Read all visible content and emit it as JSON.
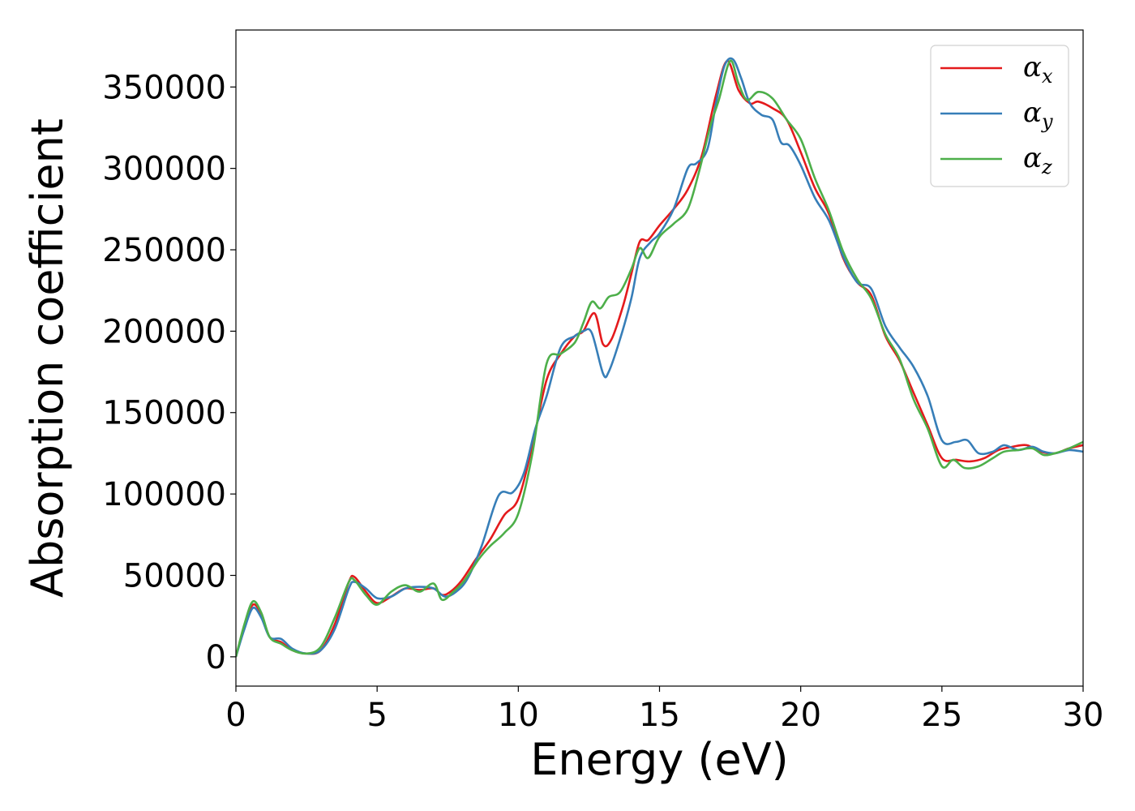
{
  "chart_data": {
    "type": "line",
    "xlabel": "Energy (eV)",
    "ylabel": "Absorption coefficient",
    "xlim": [
      0,
      30
    ],
    "ylim": [
      -18000,
      385000
    ],
    "xticks": [
      0,
      5,
      10,
      15,
      20,
      25,
      30
    ],
    "yticks": [
      0,
      50000,
      100000,
      150000,
      200000,
      250000,
      300000,
      350000
    ],
    "grid": false,
    "legend_position": "top-right",
    "series": [
      {
        "name": "α_x",
        "symbol": "α",
        "subscript": "x",
        "color": "#e41a1c",
        "points": [
          [
            0,
            0
          ],
          [
            0.3,
            19000
          ],
          [
            0.6,
            32000
          ],
          [
            0.9,
            26000
          ],
          [
            1.2,
            12000
          ],
          [
            1.6,
            9000
          ],
          [
            2,
            4000
          ],
          [
            2.5,
            2000
          ],
          [
            3,
            4000
          ],
          [
            3.5,
            20000
          ],
          [
            4,
            46000
          ],
          [
            4.2,
            49000
          ],
          [
            4.6,
            40000
          ],
          [
            5,
            33000
          ],
          [
            5.5,
            37000
          ],
          [
            6,
            42000
          ],
          [
            6.5,
            41000
          ],
          [
            7,
            42000
          ],
          [
            7.3,
            38000
          ],
          [
            7.6,
            40000
          ],
          [
            8,
            47000
          ],
          [
            8.5,
            60000
          ],
          [
            9,
            72000
          ],
          [
            9.5,
            87000
          ],
          [
            10,
            97000
          ],
          [
            10.5,
            130000
          ],
          [
            11,
            170000
          ],
          [
            11.5,
            186000
          ],
          [
            12,
            197000
          ],
          [
            12.3,
            200000
          ],
          [
            12.7,
            211000
          ],
          [
            13,
            192000
          ],
          [
            13.3,
            195000
          ],
          [
            13.7,
            215000
          ],
          [
            14,
            235000
          ],
          [
            14.3,
            255000
          ],
          [
            14.6,
            256000
          ],
          [
            15,
            265000
          ],
          [
            15.5,
            275000
          ],
          [
            16,
            287000
          ],
          [
            16.5,
            308000
          ],
          [
            17,
            345000
          ],
          [
            17.4,
            366000
          ],
          [
            17.8,
            348000
          ],
          [
            18.2,
            340000
          ],
          [
            18.5,
            341000
          ],
          [
            19,
            337000
          ],
          [
            19.5,
            330000
          ],
          [
            20,
            310000
          ],
          [
            20.5,
            288000
          ],
          [
            21,
            272000
          ],
          [
            21.5,
            245000
          ],
          [
            22,
            230000
          ],
          [
            22.5,
            222000
          ],
          [
            23,
            197000
          ],
          [
            23.5,
            182000
          ],
          [
            24,
            162000
          ],
          [
            24.5,
            142000
          ],
          [
            25,
            122000
          ],
          [
            25.5,
            121000
          ],
          [
            26,
            120000
          ],
          [
            26.5,
            122000
          ],
          [
            27,
            127000
          ],
          [
            27.5,
            129000
          ],
          [
            28,
            130000
          ],
          [
            28.5,
            126000
          ],
          [
            29,
            125000
          ],
          [
            29.5,
            128000
          ],
          [
            30,
            130000
          ]
        ]
      },
      {
        "name": "α_y",
        "symbol": "α",
        "subscript": "y",
        "color": "#377eb8",
        "points": [
          [
            0,
            0
          ],
          [
            0.3,
            17000
          ],
          [
            0.6,
            30000
          ],
          [
            0.9,
            24000
          ],
          [
            1.2,
            12000
          ],
          [
            1.6,
            11000
          ],
          [
            2,
            5000
          ],
          [
            2.5,
            2000
          ],
          [
            3,
            4000
          ],
          [
            3.5,
            17000
          ],
          [
            4,
            42000
          ],
          [
            4.2,
            46000
          ],
          [
            4.6,
            42000
          ],
          [
            5,
            36000
          ],
          [
            5.5,
            37000
          ],
          [
            6,
            42000
          ],
          [
            6.5,
            43000
          ],
          [
            7,
            42000
          ],
          [
            7.4,
            37000
          ],
          [
            7.8,
            40000
          ],
          [
            8.2,
            48000
          ],
          [
            8.7,
            68000
          ],
          [
            9.3,
            99000
          ],
          [
            9.8,
            101000
          ],
          [
            10.2,
            113000
          ],
          [
            10.6,
            140000
          ],
          [
            11,
            160000
          ],
          [
            11.5,
            190000
          ],
          [
            12,
            197000
          ],
          [
            12.3,
            200000
          ],
          [
            12.6,
            199000
          ],
          [
            13,
            174000
          ],
          [
            13.2,
            175000
          ],
          [
            13.6,
            195000
          ],
          [
            14,
            220000
          ],
          [
            14.3,
            245000
          ],
          [
            14.7,
            255000
          ],
          [
            15,
            260000
          ],
          [
            15.5,
            275000
          ],
          [
            16,
            300000
          ],
          [
            16.3,
            303000
          ],
          [
            16.7,
            312000
          ],
          [
            17,
            340000
          ],
          [
            17.3,
            363000
          ],
          [
            17.6,
            367000
          ],
          [
            17.9,
            355000
          ],
          [
            18.2,
            340000
          ],
          [
            18.6,
            333000
          ],
          [
            19,
            330000
          ],
          [
            19.3,
            316000
          ],
          [
            19.6,
            314000
          ],
          [
            20,
            302000
          ],
          [
            20.5,
            282000
          ],
          [
            21,
            268000
          ],
          [
            21.5,
            246000
          ],
          [
            22,
            230000
          ],
          [
            22.5,
            226000
          ],
          [
            23,
            203000
          ],
          [
            23.5,
            190000
          ],
          [
            24,
            178000
          ],
          [
            24.5,
            160000
          ],
          [
            25,
            133000
          ],
          [
            25.5,
            132000
          ],
          [
            25.9,
            133000
          ],
          [
            26.3,
            125000
          ],
          [
            26.8,
            126000
          ],
          [
            27.2,
            130000
          ],
          [
            27.7,
            127000
          ],
          [
            28.2,
            129000
          ],
          [
            28.6,
            126000
          ],
          [
            29,
            125000
          ],
          [
            29.5,
            127000
          ],
          [
            30,
            126000
          ]
        ]
      },
      {
        "name": "α_z",
        "symbol": "α",
        "subscript": "z",
        "color": "#4daf4a",
        "points": [
          [
            0,
            0
          ],
          [
            0.3,
            20000
          ],
          [
            0.6,
            34000
          ],
          [
            0.9,
            27000
          ],
          [
            1.2,
            12000
          ],
          [
            1.6,
            8000
          ],
          [
            2,
            4000
          ],
          [
            2.5,
            2000
          ],
          [
            3,
            6000
          ],
          [
            3.5,
            24000
          ],
          [
            4,
            46000
          ],
          [
            4.2,
            47000
          ],
          [
            4.6,
            38000
          ],
          [
            5,
            32000
          ],
          [
            5.5,
            40000
          ],
          [
            6,
            44000
          ],
          [
            6.5,
            40000
          ],
          [
            7,
            45000
          ],
          [
            7.3,
            35000
          ],
          [
            7.7,
            40000
          ],
          [
            8.1,
            47000
          ],
          [
            8.6,
            60000
          ],
          [
            9,
            68000
          ],
          [
            9.5,
            76000
          ],
          [
            10,
            88000
          ],
          [
            10.5,
            125000
          ],
          [
            11,
            180000
          ],
          [
            11.5,
            186000
          ],
          [
            12,
            193000
          ],
          [
            12.3,
            205000
          ],
          [
            12.6,
            218000
          ],
          [
            12.9,
            214000
          ],
          [
            13.2,
            221000
          ],
          [
            13.6,
            224000
          ],
          [
            14,
            238000
          ],
          [
            14.3,
            251000
          ],
          [
            14.6,
            245000
          ],
          [
            15,
            258000
          ],
          [
            15.5,
            266000
          ],
          [
            16,
            275000
          ],
          [
            16.4,
            298000
          ],
          [
            16.8,
            326000
          ],
          [
            17.1,
            342000
          ],
          [
            17.5,
            366000
          ],
          [
            17.8,
            352000
          ],
          [
            18.1,
            342000
          ],
          [
            18.5,
            347000
          ],
          [
            19,
            343000
          ],
          [
            19.5,
            330000
          ],
          [
            20,
            318000
          ],
          [
            20.5,
            294000
          ],
          [
            21,
            274000
          ],
          [
            21.5,
            249000
          ],
          [
            22,
            232000
          ],
          [
            22.5,
            220000
          ],
          [
            23,
            198000
          ],
          [
            23.5,
            183000
          ],
          [
            24,
            158000
          ],
          [
            24.5,
            140000
          ],
          [
            25,
            117000
          ],
          [
            25.4,
            121000
          ],
          [
            25.8,
            116000
          ],
          [
            26.3,
            117000
          ],
          [
            26.8,
            122000
          ],
          [
            27.2,
            126000
          ],
          [
            27.7,
            127000
          ],
          [
            28.2,
            128000
          ],
          [
            28.6,
            124000
          ],
          [
            29,
            125000
          ],
          [
            29.5,
            128000
          ],
          [
            30,
            132000
          ]
        ]
      }
    ]
  }
}
